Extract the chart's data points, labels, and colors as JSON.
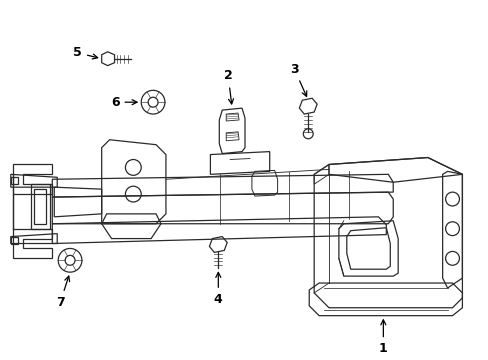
{
  "background_color": "#ffffff",
  "line_color": "#2a2a2a",
  "label_color": "#000000",
  "fig_width": 4.89,
  "fig_height": 3.6,
  "dpi": 100,
  "lw": 0.9
}
